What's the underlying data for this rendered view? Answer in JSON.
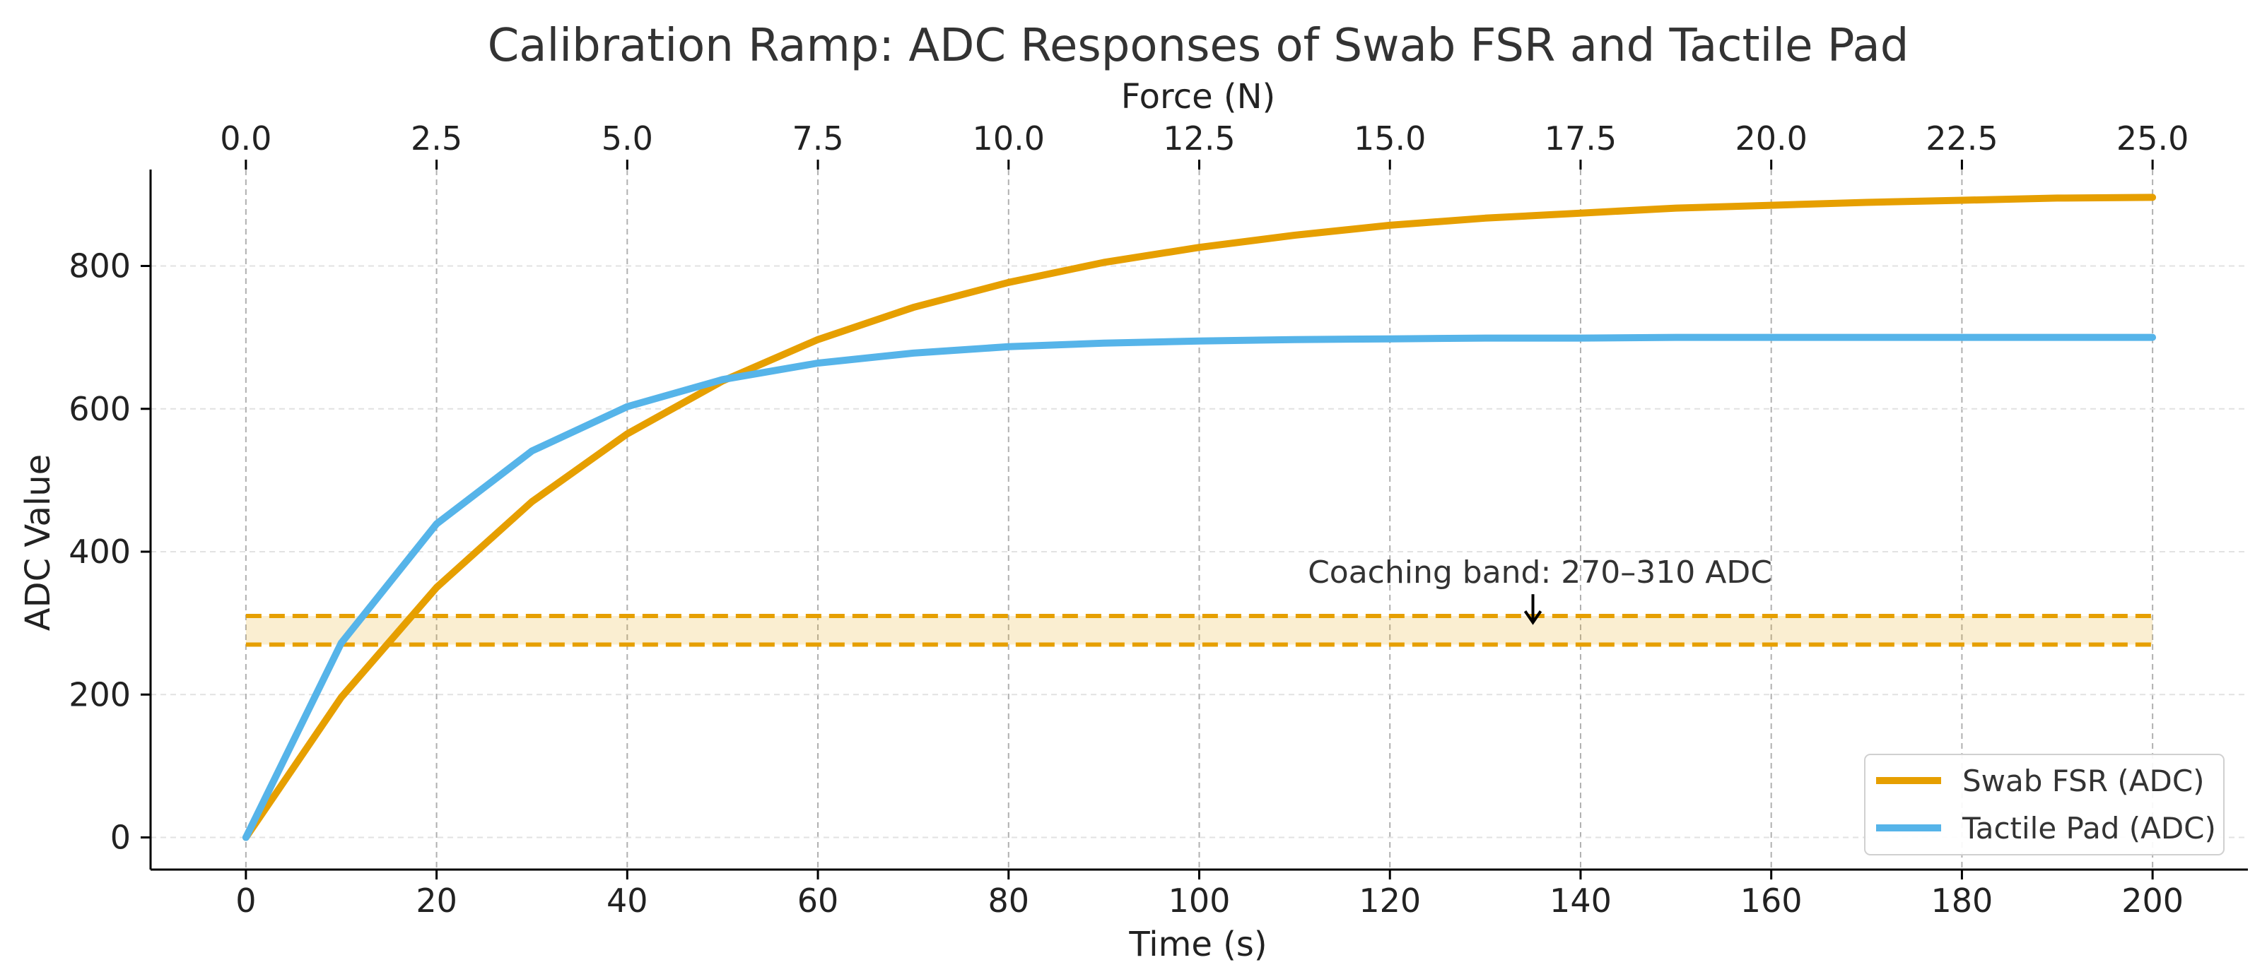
{
  "chart_data": {
    "type": "line",
    "title": "Calibration Ramp: ADC Responses of Swab FSR and Tactile Pad",
    "xlabel": "Time (s)",
    "ylabel": "ADC Value",
    "x2label": "Force (N)",
    "xlim": [
      -10,
      210
    ],
    "ylim": [
      -45,
      935
    ],
    "x2_ticks": [
      "0.0",
      "2.5",
      "5.0",
      "7.5",
      "10.0",
      "12.5",
      "15.0",
      "17.5",
      "20.0",
      "22.5",
      "25.0"
    ],
    "x_ticks": [
      0,
      20,
      40,
      60,
      80,
      100,
      120,
      140,
      160,
      180,
      200
    ],
    "y_ticks": [
      0,
      200,
      400,
      600,
      800
    ],
    "x": [
      0,
      10,
      20,
      30,
      40,
      50,
      60,
      70,
      80,
      90,
      100,
      110,
      120,
      130,
      140,
      150,
      160,
      170,
      180,
      190,
      200
    ],
    "series": [
      {
        "name": "Swab FSR (ADC)",
        "color": "#E69F00",
        "values": [
          0,
          196,
          350,
          470,
          565,
          639,
          697,
          742,
          777,
          805,
          826,
          843,
          857,
          867,
          874,
          881,
          885,
          889,
          892,
          895,
          896
        ]
      },
      {
        "name": "Tactile Pad (ADC)",
        "color": "#56B4E9",
        "values": [
          0,
          272,
          439,
          541,
          603,
          641,
          664,
          678,
          687,
          692,
          695,
          697,
          698,
          699,
          699,
          700,
          700,
          700,
          700,
          700,
          700
        ]
      }
    ],
    "band": {
      "low": 270,
      "high": 310,
      "x_start": 0,
      "x_end": 200,
      "color": "#E69F00"
    },
    "annotation": {
      "text": "Coaching band: 270–310 ADC",
      "x": 135,
      "y": 295
    },
    "grid": "x-major dashed",
    "legend_position": "lower-right"
  }
}
